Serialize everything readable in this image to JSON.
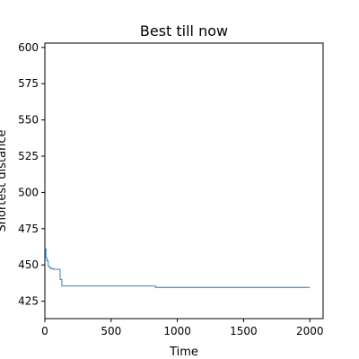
{
  "chart_data": {
    "type": "line",
    "title": "Best till now",
    "xlabel": "Time",
    "ylabel": "Shortest distance",
    "xlim": [
      0,
      2100
    ],
    "ylim": [
      413,
      603
    ],
    "xticks": [
      0,
      500,
      1000,
      1500,
      2000
    ],
    "xtick_labels": [
      "0",
      "500",
      "1000",
      "1500",
      "2000"
    ],
    "yticks": [
      425,
      450,
      475,
      500,
      525,
      550,
      575,
      600
    ],
    "ytick_labels": [
      "425",
      "450",
      "475",
      "500",
      "525",
      "550",
      "575",
      "600"
    ],
    "grid": false,
    "line_color": "#1f77b4",
    "series": [
      {
        "x": [
          0,
          8,
          8,
          15,
          15,
          25,
          25,
          38,
          38,
          45,
          45,
          65,
          65,
          115,
          115,
          128,
          128,
          835,
          835,
          2000
        ],
        "y": [
          461,
          461,
          455,
          455,
          453,
          453,
          449,
          449,
          448,
          448,
          447.5,
          447.5,
          447,
          447,
          440,
          440,
          435.5,
          435.5,
          434.5,
          434.5
        ]
      }
    ]
  }
}
